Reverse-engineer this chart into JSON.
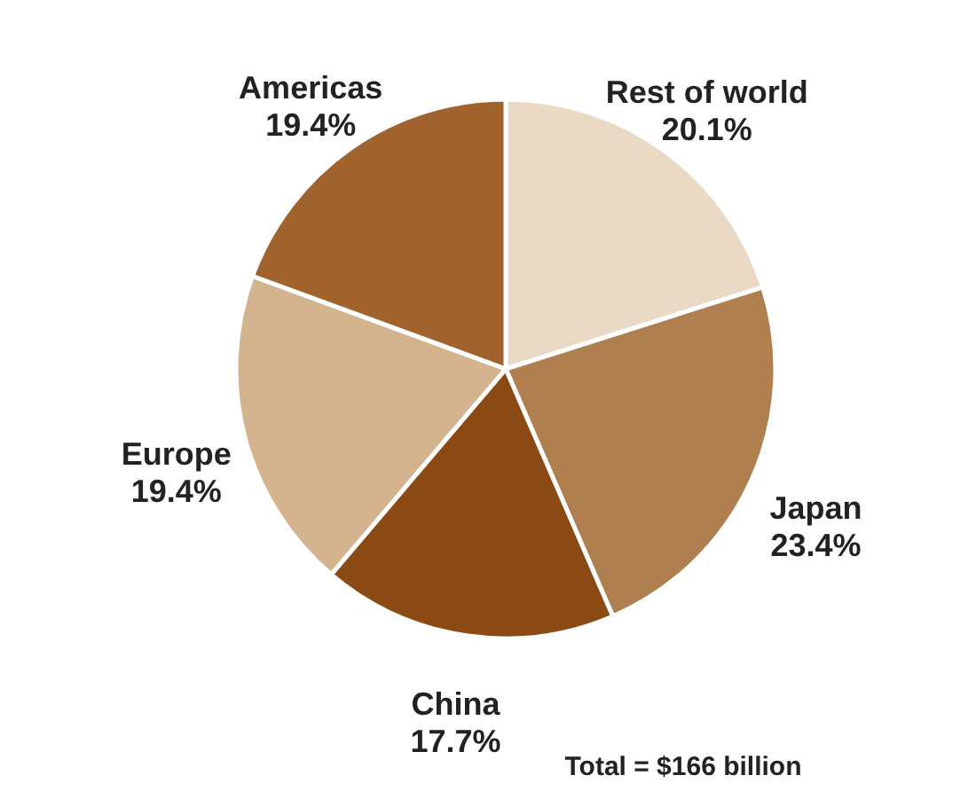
{
  "chart_data": {
    "type": "pie",
    "categories": [
      "Rest of world",
      "Japan",
      "China",
      "Europe",
      "Americas"
    ],
    "values": [
      20.1,
      23.4,
      17.7,
      19.4,
      19.4
    ],
    "value_labels": [
      "20.1%",
      "23.4%",
      "17.7%",
      "19.4%",
      "19.4%"
    ],
    "colors": [
      "#ead9c4",
      "#b07f50",
      "#8b4a14",
      "#d4b48f",
      "#a0632e"
    ],
    "annotations": [
      "Total = $166 billion"
    ]
  }
}
